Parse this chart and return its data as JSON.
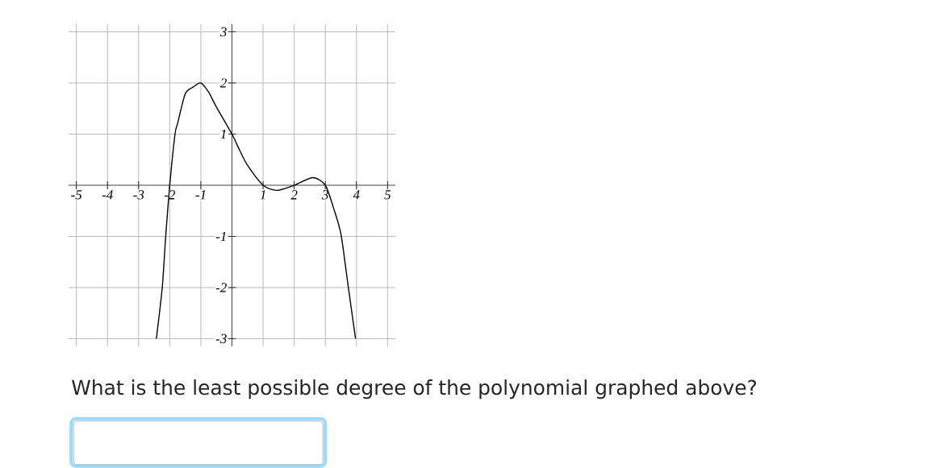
{
  "chart_data": {
    "type": "line",
    "x": [
      -2.43,
      -2.24,
      -2.13,
      -2,
      -1.83,
      -1.75,
      -1.5,
      -1.25,
      -1,
      -0.75,
      -0.5,
      0,
      0.25,
      0.5,
      1,
      1.45,
      2,
      2.6,
      3,
      3.25,
      3.5,
      3.74,
      3.97
    ],
    "values": [
      -3,
      -2,
      -1,
      0,
      1,
      1.2,
      1.79,
      1.92,
      2,
      1.82,
      1.53,
      1,
      0.68,
      0.39,
      0,
      -0.1,
      0,
      0.15,
      0,
      -0.42,
      -0.95,
      -2,
      -3
    ],
    "color": "#000000",
    "xlim": [
      -5.25,
      5.25
    ],
    "ylim": [
      -3.15,
      3.15
    ],
    "xticks": [
      -5,
      -4,
      -3,
      -2,
      -1,
      1,
      2,
      3,
      4,
      5
    ],
    "yticks": [
      -3,
      -2,
      -1,
      1,
      2,
      3
    ],
    "grid": true,
    "marker": "none",
    "line_style": "solid",
    "annotations": [
      "What is the least possible degree of the polynomial graphed above?"
    ]
  }
}
